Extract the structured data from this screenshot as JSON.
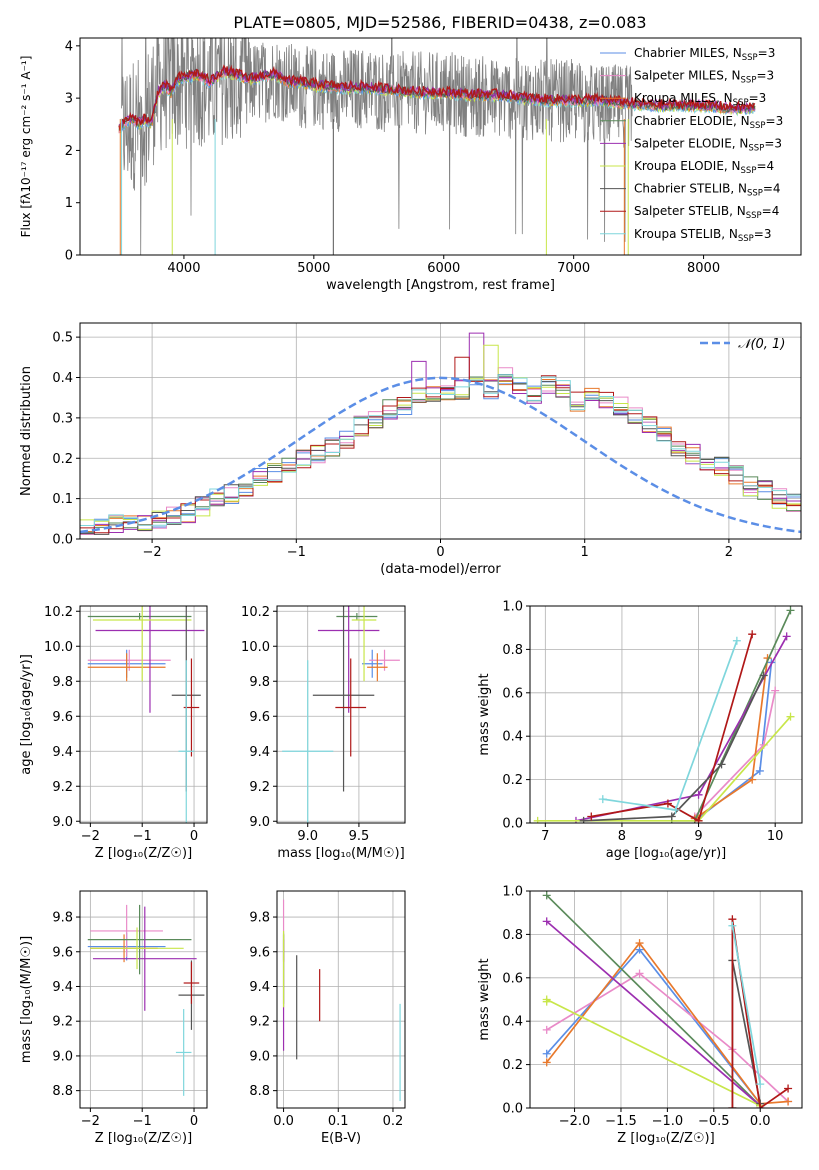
{
  "figure": {
    "title": "PLATE=0805, MJD=52586, FIBERID=0438, z=0.083"
  },
  "colors": {
    "Chabrier MILES": "#5b8ee6",
    "Salpeter MILES": "#e98ac8",
    "Kroupa MILES": "#e8792c",
    "Chabrier ELODIE": "#5a8a5a",
    "Salpeter ELODIE": "#9c2fb0",
    "Kroupa ELODIE": "#c8e64a",
    "Chabrier STELIB": "#555555",
    "Salpeter STELIB": "#b01818",
    "Kroupa STELIB": "#7fd6dc",
    "normal_curve": "#5b8ee6",
    "grid": "#b0b0b0"
  },
  "chart_data": [
    {
      "id": "spectrum",
      "type": "line",
      "title": "PLATE=0805, MJD=52586, FIBERID=0438, z=0.083",
      "xlabel": "wavelength [Angstrom, rest frame]",
      "ylabel": "Flux [fλ10⁻¹⁷ erg cm⁻² s⁻¹ A⁻¹]",
      "xlim": [
        3200,
        8750
      ],
      "ylim": [
        0,
        4.15
      ],
      "xticks": [
        4000,
        5000,
        6000,
        7000,
        8000
      ],
      "yticks": [
        0,
        1,
        2,
        3,
        4
      ],
      "grid": false,
      "legend_position": "right",
      "legend": [
        {
          "name": "Chabrier MILES",
          "label": "Chabrier MILES, N",
          "sub": "SSP",
          "tail": "=3"
        },
        {
          "name": "Salpeter MILES",
          "label": "Salpeter MILES, N",
          "sub": "SSP",
          "tail": "=3"
        },
        {
          "name": "Kroupa MILES",
          "label": "Kroupa MILES, N",
          "sub": "SSP",
          "tail": "=3"
        },
        {
          "name": "Chabrier ELODIE",
          "label": "Chabrier ELODIE, N",
          "sub": "SSP",
          "tail": "=3"
        },
        {
          "name": "Salpeter ELODIE",
          "label": "Salpeter ELODIE, N",
          "sub": "SSP",
          "tail": "=3"
        },
        {
          "name": "Kroupa ELODIE",
          "label": "Kroupa ELODIE, N",
          "sub": "SSP",
          "tail": "=4"
        },
        {
          "name": "Chabrier STELIB",
          "label": "Chabrier STELIB, N",
          "sub": "SSP",
          "tail": "=4"
        },
        {
          "name": "Salpeter STELIB",
          "label": "Salpeter STELIB, N",
          "sub": "SSP",
          "tail": "=4"
        },
        {
          "name": "Kroupa STELIB",
          "label": "Kroupa STELIB, N",
          "sub": "SSP",
          "tail": "=3"
        }
      ],
      "data_trace": {
        "x": [
          3520,
          3600,
          3700,
          3800,
          3900,
          4000,
          4100,
          4200,
          4300,
          4400,
          4500,
          4600,
          4700,
          4800,
          4900,
          5000,
          5200,
          5400,
          5600,
          5800,
          6000,
          6200,
          6400,
          6600,
          6800,
          7000,
          7200,
          7400,
          7600,
          7800,
          8000,
          8200,
          8400
        ],
        "y": [
          2.4,
          2.5,
          2.6,
          3.2,
          3.3,
          3.3,
          3.4,
          3.2,
          3.4,
          3.2,
          3.3,
          3.3,
          3.4,
          3.3,
          3.2,
          3.2,
          3.15,
          3.2,
          3.1,
          3.1,
          3.1,
          3.05,
          3.0,
          3.0,
          2.95,
          2.95,
          2.85,
          2.85,
          2.8,
          2.8,
          2.8,
          2.75,
          2.75
        ],
        "noise_amplitude": 1.0
      },
      "model": {
        "x": [
          3500,
          3550,
          3600,
          3650,
          3700,
          3750,
          3800,
          3850,
          3900,
          3950,
          4000,
          4100,
          4200,
          4300,
          4400,
          4500,
          4600,
          4700,
          4800,
          4900,
          5000,
          5200,
          5400,
          5600,
          5800,
          6000,
          6200,
          6400,
          6600,
          6800,
          7000,
          7200,
          7400,
          7600,
          7800,
          8000,
          8200,
          8400
        ],
        "y": [
          2.4,
          2.55,
          2.6,
          2.5,
          2.6,
          2.5,
          3.1,
          3.25,
          3.1,
          3.35,
          3.4,
          3.45,
          3.3,
          3.5,
          3.45,
          3.35,
          3.4,
          3.45,
          3.3,
          3.3,
          3.25,
          3.2,
          3.2,
          3.15,
          3.1,
          3.1,
          3.05,
          3.05,
          3.0,
          2.95,
          2.95,
          2.95,
          2.9,
          2.85,
          2.85,
          2.85,
          2.8,
          2.8
        ]
      }
    },
    {
      "id": "residuals",
      "type": "bar",
      "title": "",
      "xlabel": "(data-model)/error",
      "ylabel": "Normed distribution",
      "xlim": [
        -2.5,
        2.5
      ],
      "ylim": [
        0,
        0.535
      ],
      "xticks": [
        -2,
        -1,
        0,
        1,
        2
      ],
      "yticks": [
        0.0,
        0.1,
        0.2,
        0.3,
        0.4,
        0.5
      ],
      "grid": true,
      "legend_position": "top-right",
      "legend": [
        {
          "name": "normal_curve",
          "label": "𝒩(0, 1)"
        }
      ],
      "normal": {
        "mean": 0,
        "sigma": 1
      },
      "bin_width": 0.1,
      "bin_start": -2.5,
      "histogram": [
        0.035,
        0.035,
        0.04,
        0.035,
        0.04,
        0.05,
        0.06,
        0.065,
        0.08,
        0.1,
        0.11,
        0.12,
        0.15,
        0.165,
        0.18,
        0.2,
        0.21,
        0.23,
        0.25,
        0.28,
        0.3,
        0.32,
        0.33,
        0.35,
        0.36,
        0.37,
        0.37,
        0.38,
        0.37,
        0.4,
        0.38,
        0.36,
        0.38,
        0.37,
        0.34,
        0.35,
        0.34,
        0.33,
        0.3,
        0.28,
        0.26,
        0.23,
        0.21,
        0.19,
        0.18,
        0.16,
        0.13,
        0.12,
        0.1,
        0.09,
        0.08,
        0.075,
        0.065,
        0.06,
        0.05,
        0.045,
        0.04,
        0.035,
        0.03,
        0.03
      ],
      "peaks": [
        {
          "series": "Salpeter ELODIE",
          "x": 0.2,
          "y": 0.51
        },
        {
          "series": "Kroupa ELODIE",
          "x": 0.3,
          "y": 0.48
        },
        {
          "series": "Salpeter STELIB",
          "x": 0.1,
          "y": 0.45
        },
        {
          "series": "Salpeter ELODIE",
          "x": -0.2,
          "y": 0.44
        }
      ]
    },
    {
      "id": "age_vs_Z",
      "type": "scatter",
      "xlabel": "Z [log₁₀(Z/Z☉)]",
      "ylabel": "age  [log₁₀(age/yr)]",
      "xlim": [
        -2.2,
        0.25
      ],
      "ylim": [
        8.99,
        10.23
      ],
      "xticks": [
        -2,
        -1,
        0
      ],
      "yticks": [
        9.0,
        9.2,
        9.4,
        9.6,
        9.8,
        10.0,
        10.2
      ],
      "grid": true,
      "points": [
        {
          "series": "Chabrier MILES",
          "x": -1.3,
          "y": 9.9,
          "xerr": 0.75,
          "yerr": 0.08
        },
        {
          "series": "Salpeter MILES",
          "x": -1.25,
          "y": 9.92,
          "xerr": 0.8,
          "yerr": 0.06
        },
        {
          "series": "Kroupa MILES",
          "x": -1.3,
          "y": 9.88,
          "xerr": 0.75,
          "yerr": 0.08
        },
        {
          "series": "Chabrier ELODIE",
          "x": -1.05,
          "y": 10.17,
          "xerr": 1.0,
          "yerr": 0.02
        },
        {
          "series": "Salpeter ELODIE",
          "x": -0.85,
          "y": 10.09,
          "xerr": 1.05,
          "yerr": 0.47
        },
        {
          "series": "Kroupa ELODIE",
          "x": -1.0,
          "y": 10.15,
          "xerr": 0.95,
          "yerr": 0.35
        },
        {
          "series": "Chabrier STELIB",
          "x": -0.15,
          "y": 9.72,
          "xerr": 0.28,
          "yerr": 0.55
        },
        {
          "series": "Salpeter STELIB",
          "x": -0.05,
          "y": 9.65,
          "xerr": 0.15,
          "yerr": 0.28
        },
        {
          "series": "Kroupa STELIB",
          "x": -0.15,
          "y": 9.4,
          "xerr": 0.15,
          "yerr": 0.52
        }
      ]
    },
    {
      "id": "age_vs_mass",
      "type": "scatter",
      "xlabel": "mass [log₁₀(M/M☉)]",
      "ylabel": "",
      "xlim": [
        8.7,
        9.95
      ],
      "ylim": [
        8.99,
        10.23
      ],
      "xticks": [
        9.0,
        9.5
      ],
      "yticks": [
        9.0,
        9.2,
        9.4,
        9.6,
        9.8,
        10.0,
        10.2
      ],
      "grid": true,
      "points": [
        {
          "series": "Chabrier MILES",
          "x": 9.63,
          "y": 9.9,
          "xerr": 0.1,
          "yerr": 0.08
        },
        {
          "series": "Salpeter MILES",
          "x": 9.75,
          "y": 9.92,
          "xerr": 0.15,
          "yerr": 0.06
        },
        {
          "series": "Kroupa MILES",
          "x": 9.68,
          "y": 9.88,
          "xerr": 0.1,
          "yerr": 0.08
        },
        {
          "series": "Chabrier ELODIE",
          "x": 9.48,
          "y": 10.17,
          "xerr": 0.2,
          "yerr": 0.02
        },
        {
          "series": "Salpeter ELODIE",
          "x": 9.4,
          "y": 10.09,
          "xerr": 0.3,
          "yerr": 0.47
        },
        {
          "series": "Kroupa ELODIE",
          "x": 9.55,
          "y": 10.15,
          "xerr": 0.12,
          "yerr": 0.35
        },
        {
          "series": "Chabrier STELIB",
          "x": 9.35,
          "y": 9.72,
          "xerr": 0.3,
          "yerr": 0.55
        },
        {
          "series": "Salpeter STELIB",
          "x": 9.42,
          "y": 9.65,
          "xerr": 0.15,
          "yerr": 0.28
        },
        {
          "series": "Kroupa STELIB",
          "x": 9.0,
          "y": 9.4,
          "xerr": 0.25,
          "yerr": 0.52
        }
      ]
    },
    {
      "id": "weight_vs_age",
      "type": "line",
      "xlabel": "age  [log₁₀(age/yr)]",
      "ylabel": "mass weight",
      "xlim": [
        6.8,
        10.35
      ],
      "ylim": [
        0,
        1
      ],
      "xticks": [
        7,
        8,
        9,
        10
      ],
      "yticks": [
        0.0,
        0.2,
        0.4,
        0.6,
        0.8,
        1.0
      ],
      "grid": true,
      "series": [
        {
          "name": "Chabrier MILES",
          "x": [
            8.95,
            9.8,
            9.95
          ],
          "y": [
            0.01,
            0.24,
            0.74
          ]
        },
        {
          "name": "Salpeter MILES",
          "x": [
            8.95,
            9.85,
            10.0
          ],
          "y": [
            0.03,
            0.36,
            0.61
          ]
        },
        {
          "name": "Kroupa MILES",
          "x": [
            8.95,
            9.7,
            9.9
          ],
          "y": [
            0.02,
            0.2,
            0.76
          ]
        },
        {
          "name": "Chabrier ELODIE",
          "x": [
            8.65,
            8.95,
            10.2
          ],
          "y": [
            0.01,
            0.01,
            0.98
          ]
        },
        {
          "name": "Salpeter ELODIE",
          "x": [
            7.4,
            9.0,
            10.15
          ],
          "y": [
            0.01,
            0.13,
            0.86
          ]
        },
        {
          "name": "Kroupa ELODIE",
          "x": [
            6.9,
            9.0,
            10.2
          ],
          "y": [
            0.01,
            0.01,
            0.49
          ]
        },
        {
          "name": "Chabrier STELIB",
          "x": [
            7.5,
            8.65,
            9.3,
            9.85
          ],
          "y": [
            0.01,
            0.03,
            0.27,
            0.68
          ]
        },
        {
          "name": "Salpeter STELIB",
          "x": [
            7.6,
            8.6,
            9.0,
            9.7
          ],
          "y": [
            0.03,
            0.09,
            0.01,
            0.87
          ]
        },
        {
          "name": "Kroupa STELIB",
          "x": [
            7.75,
            8.7,
            9.5
          ],
          "y": [
            0.11,
            0.06,
            0.84
          ]
        }
      ]
    },
    {
      "id": "mass_vs_Z",
      "type": "scatter",
      "xlabel": "Z [log₁₀(Z/Z☉)]",
      "ylabel": "mass [log₁₀(M/M☉)]",
      "xlim": [
        -2.2,
        0.25
      ],
      "ylim": [
        8.7,
        9.95
      ],
      "xticks": [
        -2,
        -1,
        0
      ],
      "yticks": [
        8.8,
        9.0,
        9.2,
        9.4,
        9.6,
        9.8
      ],
      "grid": true,
      "points": [
        {
          "series": "Chabrier MILES",
          "x": -1.3,
          "y": 9.63,
          "xerr": 0.75,
          "yerr": 0.08
        },
        {
          "series": "Salpeter MILES",
          "x": -1.3,
          "y": 9.72,
          "xerr": 0.7,
          "yerr": 0.15
        },
        {
          "series": "Kroupa MILES",
          "x": -1.35,
          "y": 9.62,
          "xerr": 0.65,
          "yerr": 0.08
        },
        {
          "series": "Chabrier ELODIE",
          "x": -1.05,
          "y": 9.67,
          "xerr": 1.0,
          "yerr": 0.2
        },
        {
          "series": "Salpeter ELODIE",
          "x": -0.95,
          "y": 9.56,
          "xerr": 1.0,
          "yerr": 0.3
        },
        {
          "series": "Kroupa ELODIE",
          "x": -1.1,
          "y": 9.62,
          "xerr": 0.9,
          "yerr": 0.12
        },
        {
          "series": "Chabrier STELIB",
          "x": -0.05,
          "y": 9.35,
          "xerr": 0.25,
          "yerr": 0.2
        },
        {
          "series": "Salpeter STELIB",
          "x": -0.05,
          "y": 9.42,
          "xerr": 0.15,
          "yerr": 0.12
        },
        {
          "series": "Kroupa STELIB",
          "x": -0.2,
          "y": 9.02,
          "xerr": 0.15,
          "yerr": 0.25
        }
      ]
    },
    {
      "id": "mass_vs_EBV",
      "type": "scatter",
      "xlabel": "E(B-V)",
      "ylabel": "",
      "xlim": [
        -0.012,
        0.222
      ],
      "ylim": [
        8.7,
        9.95
      ],
      "xticks": [
        0.0,
        0.1,
        0.2
      ],
      "yticks": [
        8.8,
        9.0,
        9.2,
        9.4,
        9.6,
        9.8
      ],
      "grid": true,
      "points": [
        {
          "series": "Chabrier MILES",
          "x": 0.0,
          "y": 9.63,
          "xerr": 0.0,
          "yerr": 0.08
        },
        {
          "series": "Salpeter MILES",
          "x": 0.0,
          "y": 9.8,
          "xerr": 0.0,
          "yerr": 0.1
        },
        {
          "series": "Kroupa MILES",
          "x": 0.0,
          "y": 9.62,
          "xerr": 0.0,
          "yerr": 0.08
        },
        {
          "series": "Chabrier ELODIE",
          "x": 0.0,
          "y": 9.5,
          "xerr": 0.0,
          "yerr": 0.2
        },
        {
          "series": "Salpeter ELODIE",
          "x": 0.0,
          "y": 9.35,
          "xerr": 0.0,
          "yerr": 0.32
        },
        {
          "series": "Kroupa ELODIE",
          "x": 0.0,
          "y": 9.5,
          "xerr": 0.0,
          "yerr": 0.22
        },
        {
          "series": "Chabrier STELIB",
          "x": 0.024,
          "y": 9.28,
          "xerr": 0.0,
          "yerr": 0.3
        },
        {
          "series": "Salpeter STELIB",
          "x": 0.066,
          "y": 9.35,
          "xerr": 0.0,
          "yerr": 0.15
        },
        {
          "series": "Kroupa STELIB",
          "x": 0.213,
          "y": 9.02,
          "xerr": 0.0,
          "yerr": 0.28
        }
      ]
    },
    {
      "id": "weight_vs_Z",
      "type": "line",
      "xlabel": "Z [log₁₀(Z/Z☉)]",
      "ylabel": "mass weight",
      "xlim": [
        -2.48,
        0.45
      ],
      "ylim": [
        0,
        1
      ],
      "xticks": [
        -2.0,
        -1.5,
        -1.0,
        -0.5,
        0.0
      ],
      "yticks": [
        0.0,
        0.2,
        0.4,
        0.6,
        0.8,
        1.0
      ],
      "grid": true,
      "series": [
        {
          "name": "Chabrier MILES",
          "x": [
            -2.3,
            -1.3,
            0.0
          ],
          "y": [
            0.25,
            0.73,
            0.02
          ]
        },
        {
          "name": "Salpeter MILES",
          "x": [
            -2.3,
            -1.3,
            -0.3,
            0.3
          ],
          "y": [
            0.36,
            0.62,
            0.27,
            0.03
          ]
        },
        {
          "name": "Kroupa MILES",
          "x": [
            -2.3,
            -1.3,
            0.0,
            0.3
          ],
          "y": [
            0.21,
            0.76,
            0.02,
            0.03
          ]
        },
        {
          "name": "Chabrier ELODIE",
          "x": [
            -2.3,
            0.0
          ],
          "y": [
            0.98,
            0.01
          ]
        },
        {
          "name": "Salpeter ELODIE",
          "x": [
            -2.3,
            0.0
          ],
          "y": [
            0.86,
            0.01
          ]
        },
        {
          "name": "Kroupa ELODIE",
          "x": [
            -2.3,
            -2.3,
            0.0
          ],
          "y": [
            0.49,
            0.5,
            0.01
          ]
        },
        {
          "name": "Chabrier STELIB",
          "x": [
            -0.3,
            -0.3,
            0.0
          ],
          "y": [
            0.0,
            0.68,
            0.02
          ]
        },
        {
          "name": "Salpeter STELIB",
          "x": [
            -0.3,
            -0.3,
            0.0,
            0.3
          ],
          "y": [
            0.0,
            0.87,
            0.0,
            0.09
          ]
        },
        {
          "name": "Kroupa STELIB",
          "x": [
            -0.3,
            0.0
          ],
          "y": [
            0.84,
            0.11
          ]
        }
      ]
    }
  ]
}
